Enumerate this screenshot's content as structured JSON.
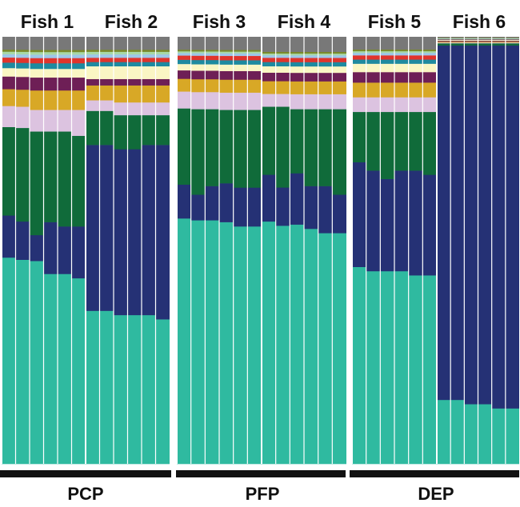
{
  "chart_data": {
    "type": "bar",
    "stacked": true,
    "normalized": true,
    "ylim": [
      0,
      1
    ],
    "grid": false,
    "legend": "none",
    "groups": [
      {
        "label": "PCP",
        "fish": [
          "Fish 1",
          "Fish 2"
        ]
      },
      {
        "label": "PFP",
        "fish": [
          "Fish 3",
          "Fish 4"
        ]
      },
      {
        "label": "DEP",
        "fish": [
          "Fish 5",
          "Fish 6"
        ]
      }
    ],
    "fish_labels": [
      "Fish 1",
      "Fish 2",
      "Fish 3",
      "Fish 4",
      "Fish 5",
      "Fish 6"
    ],
    "series_colors": {
      "teal": "#2fbaa0",
      "navy": "#253175",
      "green": "#106b3a",
      "lavender": "#dcc3e0",
      "gold": "#d8a826",
      "plum": "#6e1f56",
      "cream": "#faf6c4",
      "teal_blue": "#1e8aa0",
      "red": "#e0342c",
      "light_blue": "#9dc6e8",
      "mint": "#a8d8a6",
      "olive": "#7a8a2c",
      "gray": "#787878"
    },
    "series_order": [
      "teal",
      "navy",
      "green",
      "lavender",
      "gold",
      "plum",
      "cream",
      "teal_blue",
      "red",
      "light_blue",
      "mint",
      "olive",
      "gray"
    ],
    "fish": [
      {
        "name": "Fish 1",
        "samples": [
          [
            0.49,
            0.1,
            0.21,
            0.05,
            0.04,
            0.03,
            0.02,
            0.013,
            0.012,
            0.008,
            0.006,
            0.005,
            0.03
          ],
          [
            0.48,
            0.09,
            0.22,
            0.05,
            0.04,
            0.03,
            0.02,
            0.013,
            0.012,
            0.008,
            0.006,
            0.005,
            0.03
          ],
          [
            0.47,
            0.06,
            0.24,
            0.05,
            0.045,
            0.03,
            0.02,
            0.013,
            0.012,
            0.008,
            0.006,
            0.005,
            0.03
          ],
          [
            0.44,
            0.12,
            0.21,
            0.05,
            0.045,
            0.03,
            0.02,
            0.013,
            0.012,
            0.008,
            0.006,
            0.005,
            0.03
          ],
          [
            0.44,
            0.11,
            0.22,
            0.05,
            0.045,
            0.03,
            0.02,
            0.013,
            0.012,
            0.008,
            0.006,
            0.005,
            0.03
          ],
          [
            0.43,
            0.12,
            0.21,
            0.06,
            0.045,
            0.03,
            0.02,
            0.013,
            0.012,
            0.008,
            0.006,
            0.005,
            0.03
          ]
        ]
      },
      {
        "name": "Fish 2",
        "samples": [
          [
            0.36,
            0.39,
            0.08,
            0.025,
            0.035,
            0.015,
            0.03,
            0.01,
            0.01,
            0.008,
            0.006,
            0.005,
            0.03
          ],
          [
            0.36,
            0.39,
            0.08,
            0.025,
            0.035,
            0.015,
            0.03,
            0.01,
            0.01,
            0.008,
            0.006,
            0.005,
            0.03
          ],
          [
            0.35,
            0.39,
            0.08,
            0.03,
            0.04,
            0.015,
            0.03,
            0.01,
            0.01,
            0.008,
            0.006,
            0.005,
            0.03
          ],
          [
            0.35,
            0.39,
            0.08,
            0.03,
            0.04,
            0.015,
            0.03,
            0.01,
            0.01,
            0.008,
            0.006,
            0.005,
            0.03
          ],
          [
            0.35,
            0.4,
            0.07,
            0.03,
            0.04,
            0.015,
            0.03,
            0.01,
            0.01,
            0.008,
            0.006,
            0.005,
            0.03
          ],
          [
            0.34,
            0.41,
            0.07,
            0.03,
            0.04,
            0.015,
            0.03,
            0.01,
            0.01,
            0.008,
            0.006,
            0.005,
            0.03
          ]
        ]
      },
      {
        "name": "Fish 3",
        "samples": [
          [
            0.58,
            0.08,
            0.18,
            0.04,
            0.03,
            0.02,
            0.015,
            0.01,
            0.01,
            0.006,
            0.004,
            0.004,
            0.03
          ],
          [
            0.57,
            0.06,
            0.2,
            0.04,
            0.03,
            0.02,
            0.015,
            0.01,
            0.01,
            0.006,
            0.004,
            0.004,
            0.03
          ],
          [
            0.57,
            0.08,
            0.18,
            0.04,
            0.03,
            0.02,
            0.015,
            0.01,
            0.01,
            0.006,
            0.004,
            0.004,
            0.03
          ],
          [
            0.56,
            0.09,
            0.17,
            0.04,
            0.03,
            0.02,
            0.015,
            0.01,
            0.01,
            0.006,
            0.004,
            0.004,
            0.03
          ],
          [
            0.55,
            0.09,
            0.18,
            0.04,
            0.03,
            0.02,
            0.015,
            0.01,
            0.01,
            0.006,
            0.004,
            0.004,
            0.03
          ],
          [
            0.55,
            0.09,
            0.18,
            0.04,
            0.03,
            0.02,
            0.015,
            0.01,
            0.01,
            0.006,
            0.004,
            0.004,
            0.03
          ]
        ]
      },
      {
        "name": "Fish 4",
        "samples": [
          [
            0.57,
            0.11,
            0.16,
            0.03,
            0.03,
            0.02,
            0.015,
            0.01,
            0.01,
            0.006,
            0.004,
            0.004,
            0.035
          ],
          [
            0.56,
            0.09,
            0.19,
            0.03,
            0.03,
            0.02,
            0.015,
            0.01,
            0.01,
            0.006,
            0.004,
            0.004,
            0.035
          ],
          [
            0.56,
            0.12,
            0.15,
            0.035,
            0.03,
            0.02,
            0.015,
            0.01,
            0.01,
            0.006,
            0.004,
            0.004,
            0.035
          ],
          [
            0.55,
            0.1,
            0.18,
            0.035,
            0.03,
            0.02,
            0.015,
            0.01,
            0.01,
            0.006,
            0.004,
            0.004,
            0.035
          ],
          [
            0.54,
            0.11,
            0.18,
            0.035,
            0.03,
            0.02,
            0.015,
            0.01,
            0.01,
            0.006,
            0.004,
            0.004,
            0.035
          ],
          [
            0.54,
            0.09,
            0.2,
            0.035,
            0.03,
            0.02,
            0.015,
            0.01,
            0.01,
            0.006,
            0.004,
            0.004,
            0.035
          ]
        ]
      },
      {
        "name": "Fish 5",
        "samples": [
          [
            0.47,
            0.25,
            0.12,
            0.035,
            0.035,
            0.025,
            0.02,
            0.01,
            0.01,
            0.006,
            0.004,
            0.004,
            0.03
          ],
          [
            0.46,
            0.24,
            0.14,
            0.035,
            0.035,
            0.025,
            0.02,
            0.01,
            0.01,
            0.006,
            0.004,
            0.004,
            0.03
          ],
          [
            0.46,
            0.22,
            0.16,
            0.035,
            0.035,
            0.025,
            0.02,
            0.01,
            0.01,
            0.006,
            0.004,
            0.004,
            0.03
          ],
          [
            0.46,
            0.24,
            0.14,
            0.035,
            0.035,
            0.025,
            0.02,
            0.01,
            0.01,
            0.006,
            0.004,
            0.004,
            0.03
          ],
          [
            0.45,
            0.25,
            0.14,
            0.035,
            0.035,
            0.025,
            0.02,
            0.01,
            0.01,
            0.006,
            0.004,
            0.004,
            0.03
          ],
          [
            0.45,
            0.24,
            0.15,
            0.035,
            0.035,
            0.025,
            0.02,
            0.01,
            0.01,
            0.006,
            0.004,
            0.004,
            0.03
          ]
        ]
      },
      {
        "name": "Fish 6",
        "samples": [
          [
            0.15,
            0.83,
            0.005,
            0.002,
            0.002,
            0.002,
            0.002,
            0.001,
            0.001,
            0.001,
            0.001,
            0.001,
            0.002
          ],
          [
            0.15,
            0.83,
            0.005,
            0.002,
            0.002,
            0.002,
            0.002,
            0.001,
            0.001,
            0.001,
            0.001,
            0.001,
            0.002
          ],
          [
            0.14,
            0.84,
            0.005,
            0.002,
            0.002,
            0.002,
            0.002,
            0.001,
            0.001,
            0.001,
            0.001,
            0.001,
            0.002
          ],
          [
            0.14,
            0.84,
            0.005,
            0.002,
            0.002,
            0.002,
            0.002,
            0.001,
            0.001,
            0.001,
            0.001,
            0.001,
            0.002
          ],
          [
            0.13,
            0.85,
            0.005,
            0.002,
            0.002,
            0.002,
            0.002,
            0.001,
            0.001,
            0.001,
            0.001,
            0.001,
            0.002
          ],
          [
            0.13,
            0.85,
            0.005,
            0.002,
            0.002,
            0.002,
            0.002,
            0.001,
            0.001,
            0.001,
            0.001,
            0.001,
            0.002
          ]
        ]
      }
    ]
  }
}
